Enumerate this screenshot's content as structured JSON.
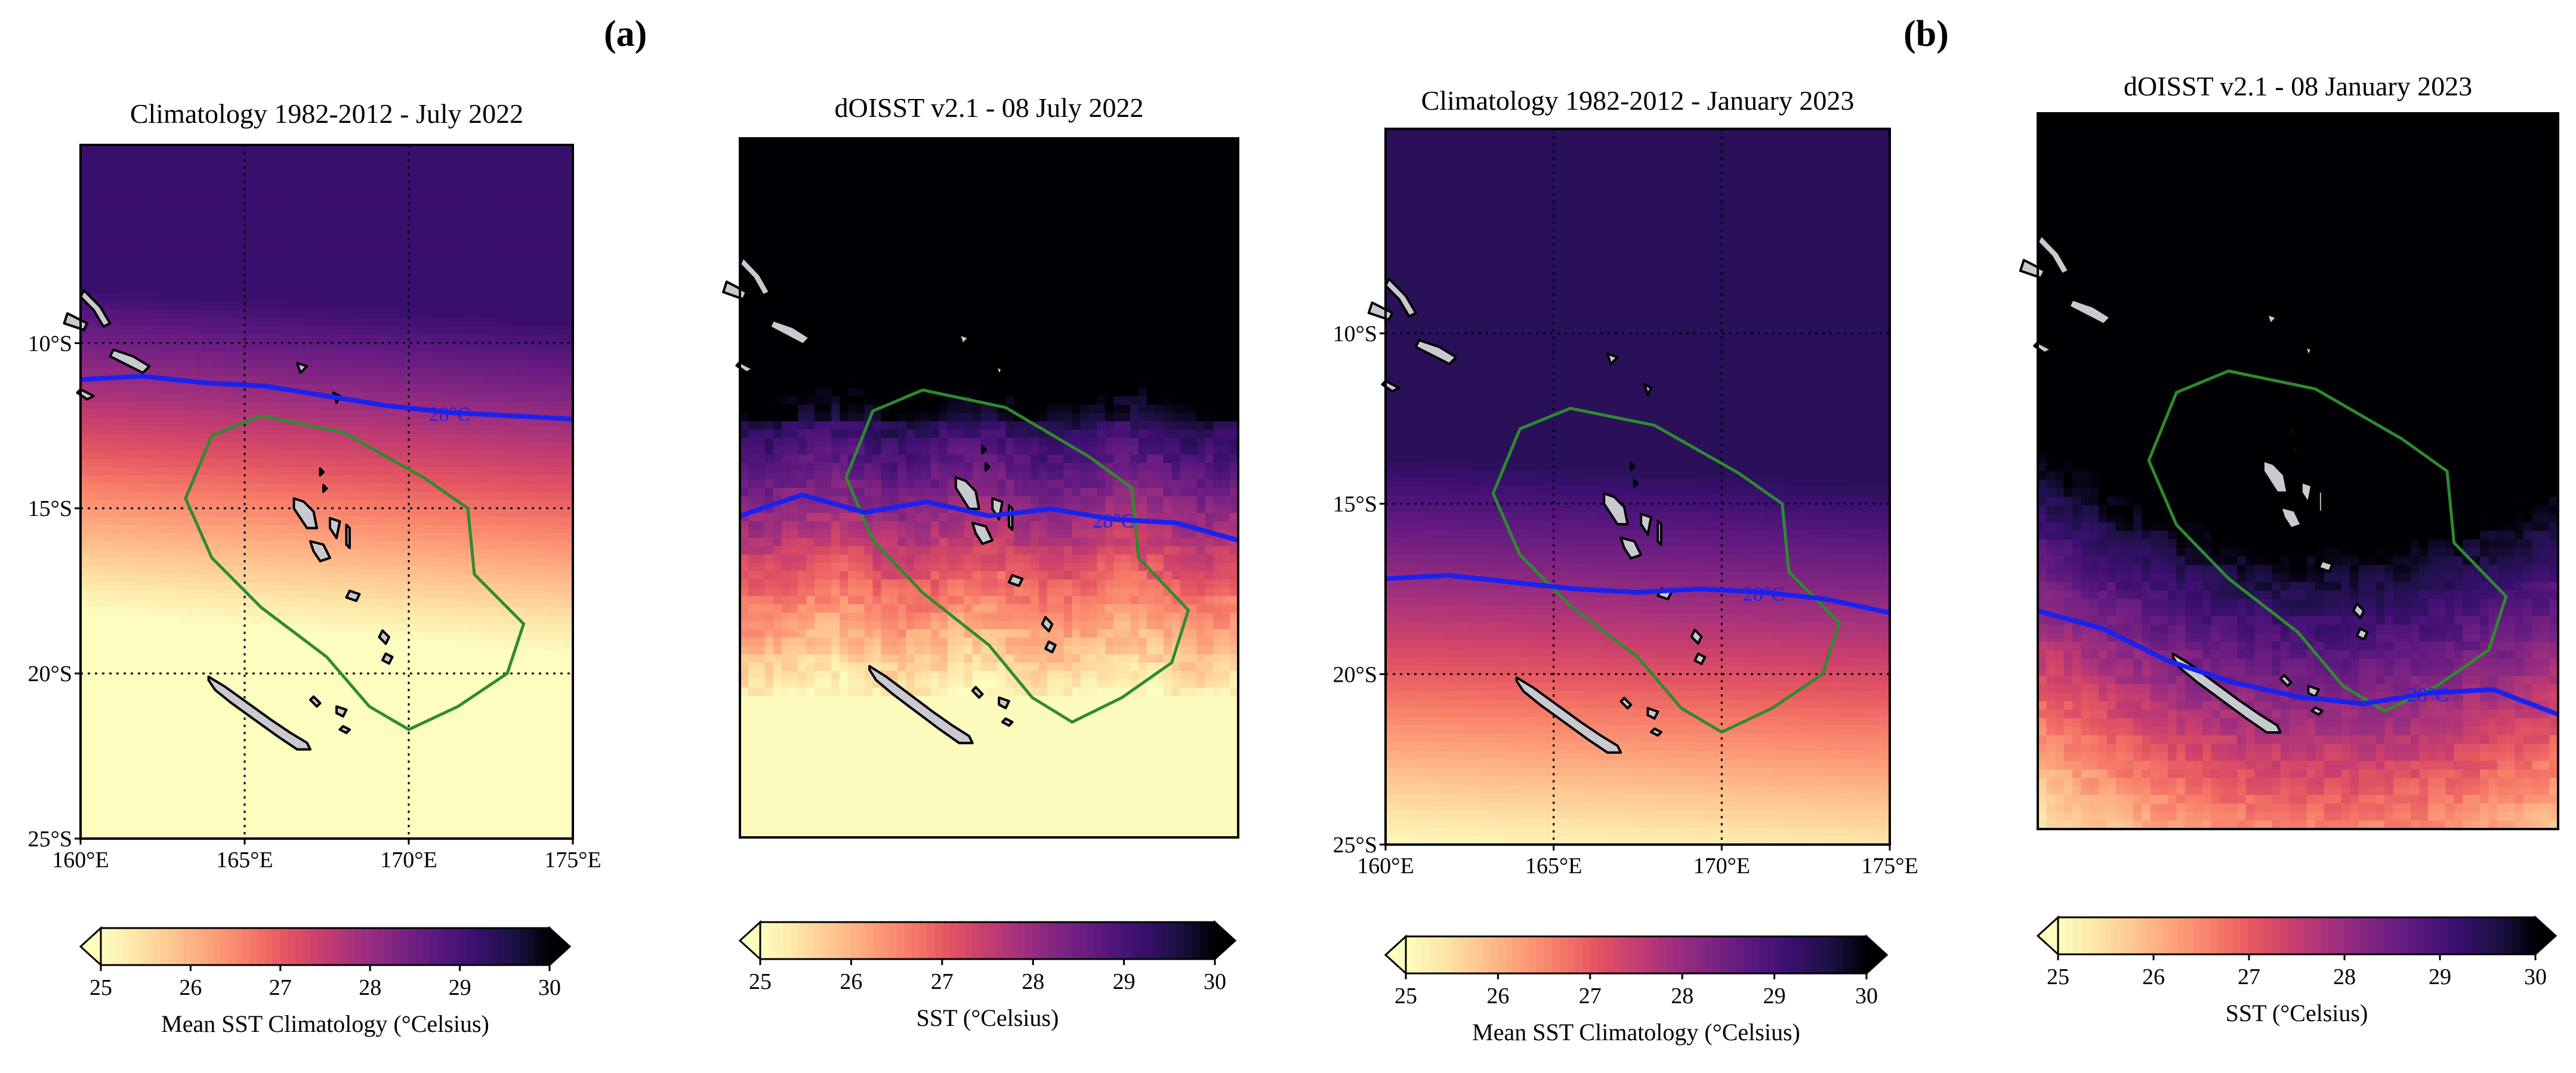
{
  "labels": {
    "a": "(a)",
    "b": "(b)"
  },
  "colors": {
    "ramp": [
      "#fcfdbf",
      "#fde4a7",
      "#fec38f",
      "#fc9f79",
      "#f67a68",
      "#e35462",
      "#c43d6f",
      "#9e2f7f",
      "#7b2382",
      "#5b187f",
      "#3b0f70",
      "#1d1147",
      "#000004"
    ],
    "isotherm": "#1a22f0",
    "eez": "#2e8b2e",
    "land": "#c9c9d0",
    "grid": "#000000"
  },
  "chart_data": [
    {
      "type": "heatmap",
      "title": "Climatology 1982-2012 - July 2022",
      "field": "climatology_july",
      "isotherm_label": "28°C",
      "isotherm_lat": [
        -11.1,
        -11.0,
        -11.2,
        -11.3,
        -11.6,
        -11.9,
        -12.1,
        -12.2,
        -12.3
      ],
      "x_ticks": [
        "160°E",
        "165°E",
        "170°E",
        "175°E"
      ],
      "y_ticks": [
        "10°S",
        "15°S",
        "20°S",
        "25°S"
      ],
      "xlim": [
        160,
        175
      ],
      "ylim": [
        -25,
        -4
      ],
      "gridlines_lon": [
        165,
        170
      ],
      "gridlines_lat": [
        -10,
        -15,
        -20
      ],
      "colorbar": {
        "min": 25,
        "max": 30,
        "ticks": [
          "25",
          "26",
          "27",
          "28",
          "29",
          "30"
        ],
        "label": "Mean SST Climatology (°Celsius)",
        "extend": "both"
      }
    },
    {
      "type": "heatmap",
      "title": "dOISST v2.1 - 08 July 2022",
      "field": "daily_july",
      "isotherm_label": "28°C",
      "isotherm_lat": [
        -15.8,
        -15.2,
        -15.7,
        -15.4,
        -15.8,
        -15.6,
        -15.9,
        -16.0,
        -16.5
      ],
      "x_ticks": [],
      "y_ticks": [],
      "xlim": [
        160,
        175
      ],
      "ylim": [
        -25,
        -5
      ],
      "gridlines_lon": [],
      "gridlines_lat": [],
      "colorbar": {
        "min": 25,
        "max": 30,
        "ticks": [
          "25",
          "26",
          "27",
          "28",
          "29",
          "30"
        ],
        "label": "SST (°Celsius)",
        "extend": "both"
      }
    },
    {
      "type": "heatmap",
      "title": "Climatology 1982-2012 - January 2023",
      "field": "climatology_january",
      "isotherm_label": "28°C",
      "isotherm_lat": [
        -17.2,
        -17.1,
        -17.3,
        -17.5,
        -17.6,
        -17.5,
        -17.6,
        -17.8,
        -18.2
      ],
      "x_ticks": [
        "160°E",
        "165°E",
        "170°E",
        "175°E"
      ],
      "y_ticks": [
        "10°S",
        "15°S",
        "20°S",
        "25°S"
      ],
      "xlim": [
        160,
        175
      ],
      "ylim": [
        -25,
        -4
      ],
      "gridlines_lon": [
        165,
        170
      ],
      "gridlines_lat": [
        -10,
        -15,
        -20
      ],
      "colorbar": {
        "min": 25,
        "max": 30,
        "ticks": [
          "25",
          "26",
          "27",
          "28",
          "29",
          "30"
        ],
        "label": "Mean SST Climatology (°Celsius)",
        "extend": "both"
      }
    },
    {
      "type": "heatmap",
      "title": "dOISST v2.1 - 08 January 2023",
      "field": "daily_january",
      "isotherm_label": "28°C",
      "isotherm_lat": [
        -18.9,
        -19.4,
        -20.3,
        -20.9,
        -21.3,
        -21.5,
        -21.2,
        -21.1,
        -21.8
      ],
      "x_ticks": [],
      "y_ticks": [],
      "xlim": [
        160,
        175
      ],
      "ylim": [
        -25,
        -5
      ],
      "gridlines_lon": [],
      "gridlines_lat": [],
      "colorbar": {
        "min": 25,
        "max": 30,
        "ticks": [
          "25",
          "26",
          "27",
          "28",
          "29",
          "30"
        ],
        "label": "SST (°Celsius)",
        "extend": "both"
      }
    }
  ]
}
